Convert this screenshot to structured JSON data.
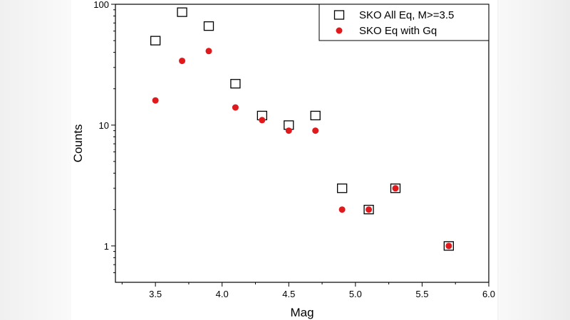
{
  "chart_data": {
    "type": "scatter",
    "title": "",
    "xlabel": "Mag",
    "ylabel": "Counts",
    "xlim": [
      3.2,
      6.0
    ],
    "ylim": [
      0.5,
      100
    ],
    "yscale": "log",
    "x_ticks": [
      "3.5",
      "4.0",
      "4.5",
      "5.0",
      "5.5",
      "6.0"
    ],
    "y_ticks": [
      "1",
      "10",
      "100"
    ],
    "grid": false,
    "legend_position": "top-right",
    "series": [
      {
        "name": "SKO All Eq, M>=3.5",
        "marker": "open-square",
        "color": "#000000",
        "x": [
          3.5,
          3.7,
          3.9,
          4.1,
          4.3,
          4.5,
          4.7,
          4.9,
          5.1,
          5.3,
          5.7
        ],
        "y": [
          50,
          86,
          66,
          22,
          12,
          10,
          12,
          3,
          2,
          3,
          1
        ]
      },
      {
        "name": "SKO Eq with Gq",
        "marker": "filled-circle",
        "color": "#e0191c",
        "x": [
          3.5,
          3.7,
          3.9,
          4.1,
          4.3,
          4.5,
          4.7,
          4.9,
          5.1,
          5.3,
          5.7
        ],
        "y": [
          16,
          34,
          41,
          14,
          11,
          9,
          9,
          2,
          2,
          3,
          1
        ]
      }
    ]
  }
}
